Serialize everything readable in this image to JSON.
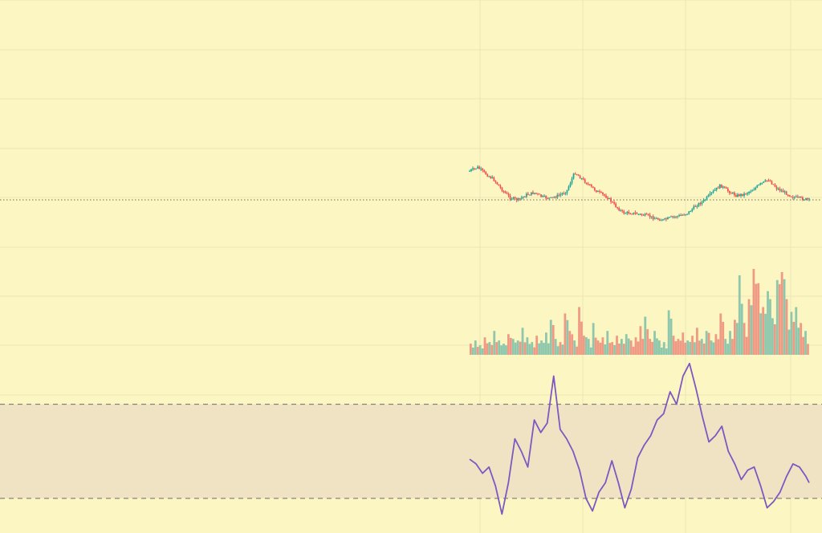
{
  "colors": {
    "background": "#fcf6c2",
    "grid": "#ece5b7",
    "last_price_line": "#7a6a4a",
    "up_candle": "#26a69a",
    "down_candle": "#ef5350",
    "volume_up": "#8fc7ad",
    "volume_down": "#ef9a84",
    "oscillator_line": "#7e57c2",
    "oscillator_band_fill": "#efe3c4",
    "oscillator_band_border": "#6f6a6a"
  },
  "chart_data": [
    {
      "type": "line",
      "name": "price-candles",
      "x": [
        0,
        10,
        20,
        30,
        40,
        50,
        60,
        70,
        80,
        90,
        100,
        110,
        120,
        130,
        140,
        150,
        160,
        170,
        180,
        190,
        200,
        210,
        220,
        230,
        240,
        250,
        260,
        270,
        280,
        290,
        300,
        310,
        320,
        330,
        340,
        350,
        360,
        370,
        380,
        390,
        400,
        410,
        420
      ],
      "values": [
        210,
        205,
        214,
        222,
        236,
        247,
        250,
        243,
        240,
        246,
        248,
        244,
        238,
        212,
        222,
        232,
        240,
        246,
        258,
        268,
        268,
        270,
        272,
        276,
        278,
        274,
        272,
        268,
        258,
        251,
        240,
        230,
        238,
        244,
        242,
        236,
        228,
        222,
        234,
        240,
        246,
        248,
        250
      ],
      "last_value": 250,
      "ylim": [
        190,
        290
      ]
    },
    {
      "type": "bar",
      "name": "volume",
      "values": [
        14,
        18,
        12,
        22,
        16,
        30,
        18,
        14,
        26,
        20,
        18,
        34,
        22,
        16,
        24,
        18,
        28,
        44,
        20,
        16,
        52,
        30,
        18,
        60,
        24,
        20,
        40,
        18,
        22,
        30,
        16,
        24,
        20,
        26,
        18,
        22,
        36,
        48,
        20,
        30,
        18,
        16,
        56,
        24,
        20,
        28,
        18,
        24,
        34,
        20,
        30,
        18,
        26,
        52,
        20,
        30,
        44,
        100,
        40,
        70,
        108,
        90,
        60,
        80,
        46,
        94,
        104,
        70,
        54,
        60,
        40,
        30
      ],
      "ylim": [
        0,
        110
      ]
    },
    {
      "type": "line",
      "name": "oscillator",
      "x": [
        0,
        8,
        16,
        24,
        32,
        40,
        48,
        56,
        64,
        72,
        80,
        88,
        96,
        104,
        112,
        120,
        128,
        136,
        144,
        152,
        160,
        168,
        176,
        184,
        192,
        200,
        208,
        216,
        224,
        232,
        240,
        248,
        256,
        264,
        272,
        280,
        288,
        296,
        304,
        312,
        320,
        328,
        336,
        344,
        352,
        360,
        368,
        376,
        384,
        392,
        400,
        408,
        416,
        420
      ],
      "values": [
        45,
        42,
        36,
        40,
        28,
        10,
        30,
        58,
        50,
        40,
        70,
        62,
        68,
        98,
        64,
        58,
        50,
        38,
        20,
        12,
        24,
        30,
        44,
        30,
        14,
        26,
        46,
        54,
        60,
        70,
        74,
        88,
        80,
        98,
        106,
        90,
        72,
        56,
        60,
        66,
        50,
        42,
        32,
        38,
        40,
        28,
        14,
        18,
        24,
        34,
        42,
        40,
        34,
        30
      ],
      "ylim": [
        0,
        110
      ],
      "band": [
        20,
        80
      ]
    }
  ]
}
